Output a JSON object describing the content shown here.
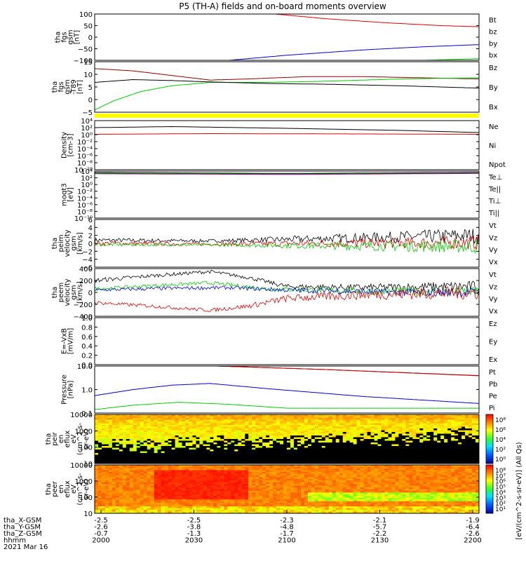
{
  "title": "P5 (TH-A) fields and on-board moments overview",
  "colors": {
    "black": "#000000",
    "red": "#e00000",
    "green": "#00cc00",
    "blue": "#0000d0",
    "darkred": "#8b0000",
    "purple": "#a000a0",
    "yellow": "#ffff00"
  },
  "ephemeris": {
    "labels": [
      "tha_X-GSM",
      "tha_Y-GSM",
      "tha_Z-GSM",
      "hhmm",
      "2021 Mar 16"
    ],
    "columns": [
      {
        "x": "-2.5",
        "y": "-2.6",
        "z": "-0.7",
        "t": "2000"
      },
      {
        "x": "-2.5",
        "y": "-3.8",
        "z": "-1.3",
        "t": "2030"
      },
      {
        "x": "-2.3",
        "y": "-4.8",
        "z": "-1.7",
        "t": "2100"
      },
      {
        "x": "-2.1",
        "y": "-5.7",
        "z": "-2.2",
        "t": "2130"
      },
      {
        "x": "-1.9",
        "y": "-6.4",
        "z": "-2.6",
        "t": "2200"
      }
    ]
  },
  "colorbars": [
    {
      "label": "[eV/(cm^2-s-sr-eV)] (All Qs)",
      "ticks": [
        "10^8",
        "10^6",
        "10^4",
        "10^2",
        "10^0"
      ]
    },
    {
      "label": "[eV/(cm^2-s-sr-eV)] (All Qs)",
      "ticks": [
        "10^8",
        "10^7",
        "10^6",
        "10^5",
        "10^4",
        "10^3",
        "10^2",
        "10^1"
      ]
    }
  ],
  "chart_data": [
    {
      "type": "line",
      "ylabel": [
        "tha",
        "fgs",
        "gsm",
        "[nT]"
      ],
      "yticks": [
        "100",
        "50",
        "0",
        "−50",
        "−100"
      ],
      "ylim": [
        -100,
        100
      ],
      "legend": [
        {
          "name": "Bt",
          "color": "black"
        },
        {
          "name": "bz",
          "color": "red"
        },
        {
          "name": "by",
          "color": "green"
        },
        {
          "name": "bx",
          "color": "blue"
        }
      ],
      "series": [
        {
          "name": "bz",
          "color": "red",
          "x": [
            0.47,
            0.6,
            0.75,
            0.9,
            1.0
          ],
          "y": [
            100,
            80,
            63,
            50,
            45
          ]
        },
        {
          "name": "bx",
          "color": "blue",
          "x": [
            0.35,
            0.5,
            0.7,
            0.85,
            1.0
          ],
          "y": [
            -100,
            -78,
            -55,
            -42,
            -32
          ]
        },
        {
          "name": "by",
          "color": "green",
          "x": [
            0.86,
            1.0
          ],
          "y": [
            -100,
            -93
          ]
        }
      ]
    },
    {
      "type": "line",
      "ylabel": [
        "tha",
        "fgs",
        "gsm",
        "-T89",
        "[nT]"
      ],
      "yticks": [
        "15",
        "10",
        "5",
        "0",
        "−5"
      ],
      "ylim": [
        -7,
        15
      ],
      "legend": [
        {
          "name": "Bz",
          "color": "darkred"
        },
        {
          "name": "By",
          "color": "green"
        },
        {
          "name": "Bx",
          "color": "black"
        }
      ],
      "series": [
        {
          "name": "Bz",
          "color": "darkred",
          "x": [
            0.0,
            0.1,
            0.2,
            0.3,
            0.4,
            0.55,
            0.7,
            0.85,
            1.0
          ],
          "y": [
            12,
            11,
            9,
            7,
            7.5,
            8.5,
            8.5,
            8,
            7.5
          ]
        },
        {
          "name": "By",
          "color": "green",
          "x": [
            0.0,
            0.05,
            0.12,
            0.2,
            0.3,
            0.45,
            0.6,
            0.8,
            1.0
          ],
          "y": [
            -6,
            -2,
            2,
            4.5,
            6,
            6,
            6.5,
            7.5,
            8
          ]
        },
        {
          "name": "Bx",
          "color": "black",
          "x": [
            0.0,
            0.1,
            0.2,
            0.3,
            0.45,
            0.6,
            0.8,
            1.0
          ],
          "y": [
            6,
            7.2,
            6.8,
            6.2,
            5.5,
            5.2,
            4.5,
            3.5
          ]
        }
      ]
    },
    {
      "type": "bar",
      "kind": "mode-bar",
      "color": "yellow"
    },
    {
      "type": "line",
      "yscale": "log",
      "ylabel": [
        "Density",
        "[cm-3]"
      ],
      "yticks": [
        "10^4",
        "10^2",
        "10^0",
        "10^-2",
        "10^-4",
        "10^-6",
        "10^-8",
        "10^-10"
      ],
      "ylim": [
        -10,
        4
      ],
      "legend": [
        {
          "name": "Ne",
          "color": "red"
        },
        {
          "name": "Ni",
          "color": "black"
        },
        {
          "name": "Npot",
          "color": "blue"
        }
      ],
      "series": [
        {
          "name": "Ni",
          "color": "black",
          "x": [
            0.0,
            0.2,
            0.5,
            0.8,
            1.0
          ],
          "y": [
            2.0,
            2.3,
            1.8,
            1.2,
            0.6
          ]
        },
        {
          "name": "Ne",
          "color": "red",
          "x": [
            0.0,
            0.3,
            0.7,
            1.0
          ],
          "y": [
            0.1,
            0.3,
            0.2,
            0.1
          ]
        }
      ]
    },
    {
      "type": "line",
      "yscale": "log",
      "ylabel": [
        "moqt3",
        "[eV]"
      ],
      "yticks": [
        "10^4",
        "10^2",
        "10^0",
        "10^-2",
        "10^-4",
        "10^-6",
        "10^-8",
        "10^-10"
      ],
      "ylim": [
        -10,
        4
      ],
      "legend": [
        {
          "name": "Te⊥",
          "color": "red"
        },
        {
          "name": "Te||",
          "color": "black"
        },
        {
          "name": "Ti⊥",
          "color": "purple"
        },
        {
          "name": "Ti||",
          "color": "green"
        }
      ],
      "series": [
        {
          "name": "Ti||",
          "color": "green",
          "x": [
            0.0,
            0.5,
            1.0
          ],
          "y": [
            3.4,
            3.1,
            3.5
          ]
        },
        {
          "name": "Te||",
          "color": "black",
          "x": [
            0.0,
            0.5,
            1.0
          ],
          "y": [
            3.6,
            3.3,
            3.6
          ]
        },
        {
          "name": "Ti⊥",
          "color": "purple",
          "x": [
            0.0,
            0.5,
            1.0
          ],
          "y": [
            3.2,
            3.0,
            3.3
          ]
        }
      ]
    },
    {
      "type": "line",
      "ylabel": [
        "tha",
        "peim",
        "velocity",
        "gsm",
        "[km/s]"
      ],
      "yticks": [
        "6",
        "4",
        "2",
        "0",
        "−2",
        "−4",
        "−6"
      ],
      "ylim": [
        -6,
        6
      ],
      "legend": [
        {
          "name": "Vt",
          "color": "black"
        },
        {
          "name": "Vz",
          "color": "red"
        },
        {
          "name": "Vy",
          "color": "green"
        },
        {
          "name": "Vx",
          "color": "blue"
        }
      ],
      "series": [
        {
          "name": "Vt",
          "color": "black",
          "x": [
            0.0,
            0.3,
            0.6,
            1.0
          ],
          "y": [
            0.8,
            0.6,
            1.2,
            2.0
          ],
          "noise": [
            0.6,
            0.4,
            1.0,
            2.0
          ]
        },
        {
          "name": "Vz",
          "color": "red",
          "x": [
            0.0,
            0.3,
            0.6,
            1.0
          ],
          "y": [
            0.0,
            -0.2,
            0.0,
            0.2
          ],
          "noise": [
            0.6,
            0.4,
            1.0,
            1.8
          ]
        },
        {
          "name": "Vy",
          "color": "green",
          "x": [
            0.0,
            0.3,
            0.6,
            1.0
          ],
          "y": [
            -0.3,
            -0.4,
            -0.6,
            -0.8
          ],
          "noise": [
            0.4,
            0.3,
            0.9,
            1.8
          ]
        }
      ]
    },
    {
      "type": "line",
      "ylabel": [
        "tha",
        "peem",
        "velocity",
        "gsm",
        "[km/s]"
      ],
      "yticks": [
        "400",
        "200",
        "0",
        "−200",
        "−400"
      ],
      "ylim": [
        -400,
        400
      ],
      "legend": [
        {
          "name": "Vt",
          "color": "black"
        },
        {
          "name": "Vz",
          "color": "red"
        },
        {
          "name": "Vy",
          "color": "green"
        },
        {
          "name": "Vx",
          "color": "blue"
        }
      ],
      "series": [
        {
          "name": "Vt",
          "color": "black",
          "x": [
            0.0,
            0.15,
            0.3,
            0.4,
            0.5,
            0.7,
            1.0
          ],
          "y": [
            200,
            280,
            350,
            250,
            100,
            80,
            100
          ],
          "noise": [
            40,
            30,
            30,
            30,
            40,
            60,
            100
          ]
        },
        {
          "name": "Vy",
          "color": "green",
          "x": [
            0.0,
            0.2,
            0.3,
            0.45,
            0.7,
            1.0
          ],
          "y": [
            60,
            130,
            160,
            60,
            20,
            10
          ],
          "noise": [
            30,
            30,
            30,
            40,
            60,
            80
          ]
        },
        {
          "name": "Vx",
          "color": "blue",
          "x": [
            0.0,
            0.2,
            0.35,
            0.5,
            0.8,
            1.0
          ],
          "y": [
            40,
            70,
            80,
            40,
            0,
            0
          ],
          "noise": [
            30,
            30,
            30,
            40,
            60,
            80
          ]
        },
        {
          "name": "Vz",
          "color": "red",
          "x": [
            0.0,
            0.15,
            0.3,
            0.4,
            0.5,
            0.7,
            1.0
          ],
          "y": [
            -170,
            -230,
            -300,
            -230,
            -100,
            -40,
            0
          ],
          "noise": [
            30,
            30,
            30,
            40,
            60,
            80,
            120
          ]
        }
      ]
    },
    {
      "type": "line",
      "ylabel": [
        "E=-VxB",
        "[mV/m]"
      ],
      "yticks": [
        "1.0",
        "0.8",
        "0.6",
        "0.4",
        "0.2",
        "0.0"
      ],
      "ylim": [
        0,
        1
      ],
      "legend": [
        {
          "name": "Ez",
          "color": "red"
        },
        {
          "name": "Ey",
          "color": "green"
        },
        {
          "name": "Ex",
          "color": "blue"
        }
      ],
      "series": []
    },
    {
      "type": "line",
      "yscale": "log",
      "ylabel": [
        "Pressure",
        "[nPa]"
      ],
      "yticks": [
        "10.0",
        "1.0",
        "0.1"
      ],
      "ylim": [
        -1.4,
        1.3
      ],
      "legend": [
        {
          "name": "Pt",
          "color": "black"
        },
        {
          "name": "Pb",
          "color": "red"
        },
        {
          "name": "Pe",
          "color": "green"
        },
        {
          "name": "Pi",
          "color": "blue"
        }
      ],
      "series": [
        {
          "name": "Pt",
          "color": "black",
          "x": [
            0.32,
            0.6,
            1.0
          ],
          "y": [
            1.3,
            1.1,
            0.75
          ]
        },
        {
          "name": "Pb",
          "color": "red",
          "x": [
            0.32,
            0.6,
            1.0
          ],
          "y": [
            1.3,
            1.1,
            0.74
          ]
        },
        {
          "name": "Pi",
          "color": "blue",
          "x": [
            0.0,
            0.1,
            0.2,
            0.3,
            0.45,
            0.7,
            1.0
          ],
          "y": [
            -0.4,
            -0.05,
            0.2,
            0.3,
            0.0,
            -0.45,
            -0.85
          ]
        },
        {
          "name": "Pe",
          "color": "green",
          "x": [
            0.0,
            0.1,
            0.22,
            0.35,
            0.5,
            1.0
          ],
          "y": [
            -1.2,
            -0.95,
            -0.78,
            -0.9,
            -1.12,
            -1.12
          ]
        }
      ]
    },
    {
      "type": "heatmap",
      "ylabel": [
        "tha",
        "peir",
        "en",
        "eflux",
        "eV",
        "(cm^2-s-",
        "sr-eV)"
      ],
      "yticks": [
        "10000",
        "1000",
        "100",
        "10"
      ],
      "yscale": "log"
    },
    {
      "type": "heatmap",
      "ylabel": [
        "tha",
        "peer",
        "en",
        "eflux",
        "eV",
        "(cm^2-s-",
        "sr-eV)"
      ],
      "yticks": [
        "10000",
        "1000",
        "100",
        "10"
      ],
      "yscale": "log"
    }
  ]
}
